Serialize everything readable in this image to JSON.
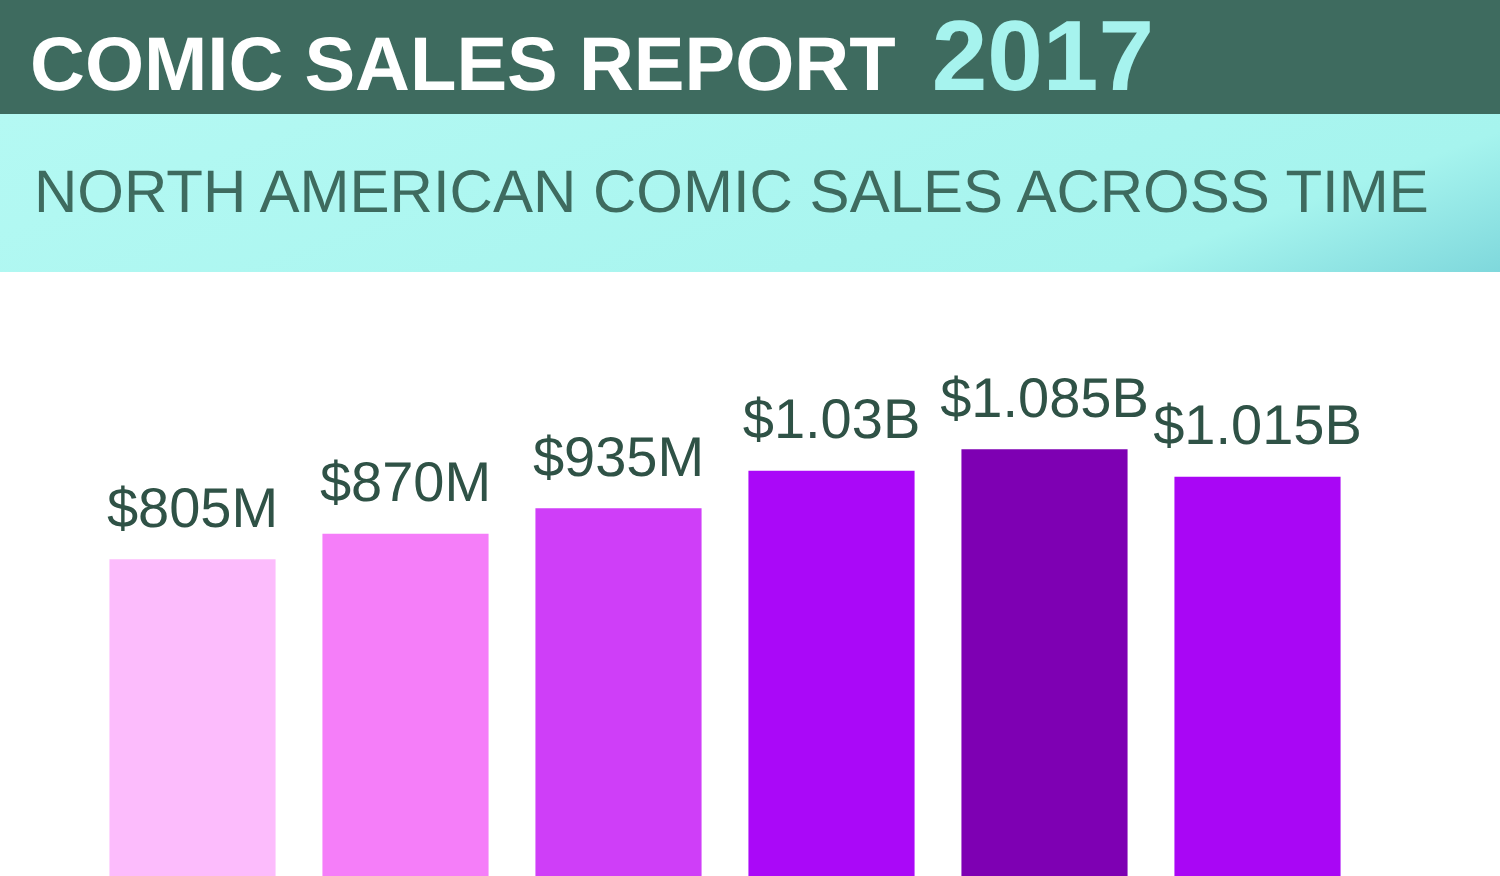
{
  "chart_data": {
    "type": "bar",
    "title": "COMIC SALES REPORT 2017",
    "subtitle": "NORTH AMERICAN COMIC SALES ACROSS TIME",
    "categories": [
      null,
      null,
      null,
      null,
      null,
      null
    ],
    "values": [
      805000000,
      870000000,
      935000000,
      1030000000,
      1085000000,
      1015000000
    ],
    "colors": [
      "#fcbcfc",
      "#f57ef9",
      "#cf3ef8",
      "#aa08f8",
      "#7e00b3",
      "#a906f5"
    ],
    "value_labels": [
      "$805M",
      "$870M",
      "$935M",
      "$1.03B",
      "$1.085B",
      "$1.015B"
    ],
    "tick_labels": false
  }
}
